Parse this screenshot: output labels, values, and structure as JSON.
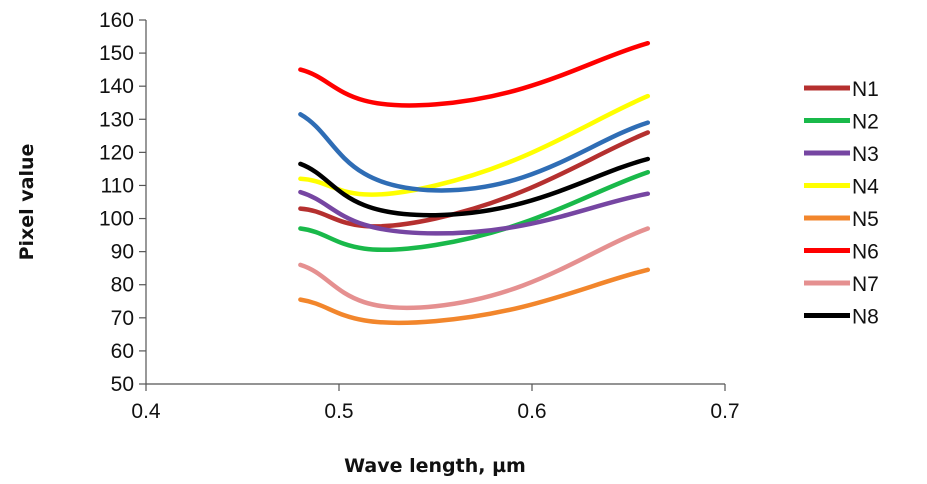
{
  "chart_data": {
    "type": "line",
    "title": "",
    "xlabel": "Wave length, µm",
    "ylabel": "Pixel value",
    "xlim": [
      0.4,
      0.7
    ],
    "ylim": [
      50,
      160
    ],
    "x_ticks": [
      "0.4",
      "0.5",
      "0.6",
      "0.7"
    ],
    "y_ticks": [
      "50",
      "60",
      "70",
      "80",
      "90",
      "100",
      "110",
      "120",
      "130",
      "140",
      "150",
      "160"
    ],
    "grid": false,
    "legend_position": "right",
    "x": [
      0.48,
      0.55,
      0.66
    ],
    "series": [
      {
        "name": "N1",
        "color": "#b5302f",
        "values": [
          103,
          100,
          126
        ]
      },
      {
        "name": "N2",
        "color": "#19b94a",
        "values": [
          97,
          92,
          114
        ]
      },
      {
        "name": "N3",
        "color": "#7646a2",
        "values": [
          108,
          95.5,
          107.5
        ]
      },
      {
        "name": "N4",
        "color": "#ffff00",
        "values": [
          112,
          110,
          137
        ]
      },
      {
        "name": "N5",
        "color": "#f2862c",
        "values": [
          75.5,
          69,
          84.5
        ]
      },
      {
        "name": "N6",
        "color": "#ff0000",
        "values": [
          145,
          134.5,
          153
        ]
      },
      {
        "name": "N7",
        "color": "#e59090",
        "values": [
          86,
          73.5,
          97
        ]
      },
      {
        "name": "N8",
        "color": "#000000",
        "values": [
          116.5,
          101,
          118
        ]
      },
      {
        "name": "",
        "color": "#2f6db5",
        "values": [
          131.5,
          108.5,
          129
        ]
      }
    ]
  }
}
